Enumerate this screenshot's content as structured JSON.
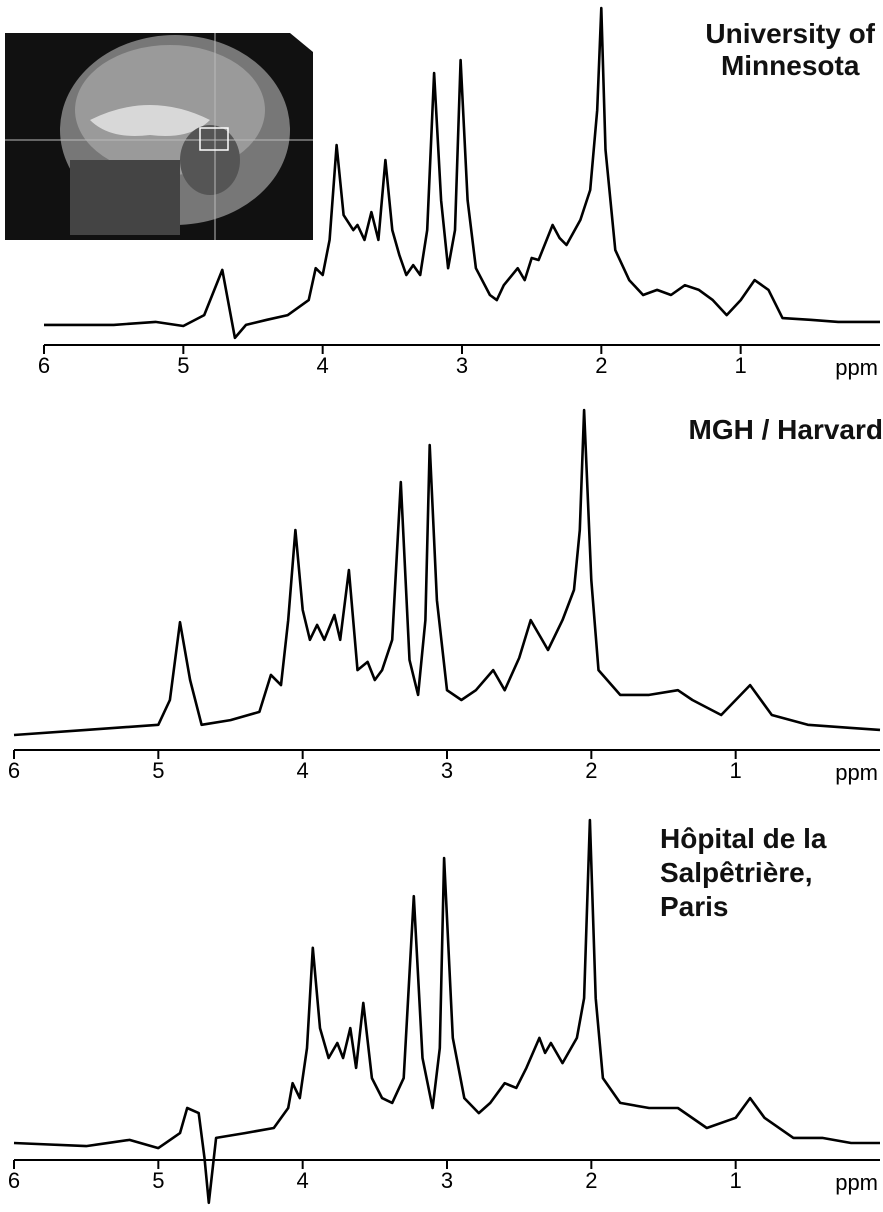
{
  "chart_data": [
    {
      "type": "line",
      "title": "University of\nMinnesota",
      "xlabel": "ppm",
      "color": "#000000",
      "xlim": [
        6,
        0
      ],
      "ylim": [
        0,
        100
      ],
      "xticks": [
        6,
        5,
        4,
        3,
        2,
        1
      ],
      "x": [
        6.0,
        5.5,
        5.2,
        5.0,
        4.85,
        4.75,
        4.72,
        4.68,
        4.63,
        4.55,
        4.4,
        4.25,
        4.1,
        4.05,
        4.0,
        3.95,
        3.9,
        3.85,
        3.78,
        3.75,
        3.7,
        3.65,
        3.6,
        3.55,
        3.5,
        3.45,
        3.4,
        3.35,
        3.3,
        3.25,
        3.2,
        3.15,
        3.1,
        3.05,
        3.01,
        2.96,
        2.9,
        2.8,
        2.75,
        2.7,
        2.6,
        2.55,
        2.5,
        2.45,
        2.35,
        2.3,
        2.25,
        2.15,
        2.08,
        2.03,
        2.0,
        1.97,
        1.9,
        1.8,
        1.7,
        1.6,
        1.5,
        1.4,
        1.3,
        1.2,
        1.1,
        1.0,
        0.9,
        0.8,
        0.7,
        0.5,
        0.3,
        0.0
      ],
      "values": [
        5.9,
        5.9,
        6.8,
        5.6,
        8.8,
        19.1,
        22.1,
        13.2,
        2.1,
        5.9,
        7.4,
        8.8,
        13.2,
        22.6,
        20.6,
        30.9,
        58.8,
        38.2,
        33.8,
        35.3,
        30.9,
        39.1,
        30.9,
        54.4,
        33.8,
        26.5,
        20.6,
        23.5,
        20.6,
        33.8,
        80,
        42.6,
        22.6,
        33.8,
        83.8,
        42.6,
        22.6,
        14.7,
        13.2,
        17.6,
        22.6,
        19.1,
        25.6,
        25,
        35.3,
        31.5,
        29.4,
        36.8,
        45.6,
        69.1,
        99.1,
        57.4,
        27.9,
        19.1,
        14.7,
        16.2,
        14.7,
        17.6,
        16.2,
        13.2,
        8.8,
        13.2,
        19.1,
        16.2,
        7.9,
        7.4,
        6.8,
        6.8
      ]
    },
    {
      "type": "line",
      "title": "MGH / Harvard",
      "xlabel": "ppm",
      "color": "#000000",
      "xlim": [
        6,
        0
      ],
      "ylim": [
        0,
        100
      ],
      "xticks": [
        6,
        5,
        4,
        3,
        2,
        1
      ],
      "x": [
        6.0,
        5.5,
        5.0,
        4.92,
        4.85,
        4.78,
        4.7,
        4.5,
        4.3,
        4.22,
        4.15,
        4.1,
        4.05,
        4.0,
        3.95,
        3.9,
        3.85,
        3.78,
        3.74,
        3.68,
        3.62,
        3.55,
        3.5,
        3.45,
        3.38,
        3.32,
        3.26,
        3.2,
        3.15,
        3.12,
        3.07,
        3.0,
        2.9,
        2.8,
        2.68,
        2.6,
        2.5,
        2.42,
        2.36,
        2.3,
        2.2,
        2.12,
        2.08,
        2.05,
        2.0,
        1.95,
        1.8,
        1.6,
        1.4,
        1.3,
        1.1,
        0.9,
        0.75,
        0.5,
        0.2,
        0.0
      ],
      "values": [
        4.4,
        5.9,
        7.4,
        14.7,
        37.6,
        20.6,
        7.4,
        8.8,
        11.2,
        22.1,
        19.1,
        38.2,
        64.7,
        41.2,
        32.4,
        36.8,
        32.4,
        39.7,
        32.4,
        52.9,
        23.5,
        25.9,
        20.6,
        23.5,
        32.4,
        78.8,
        26.5,
        16.2,
        38.2,
        89.7,
        44.1,
        17.6,
        14.7,
        17.6,
        23.5,
        17.6,
        27.1,
        38.2,
        33.8,
        29.4,
        38.2,
        47.1,
        64.7,
        100,
        50,
        23.5,
        16.2,
        16.2,
        17.6,
        14.7,
        10.3,
        19.1,
        10.3,
        7.4,
        6.5,
        5.9
      ]
    },
    {
      "type": "line",
      "title": "Hôpital de la\nSalpêtrière,\nParis",
      "xlabel": "ppm",
      "color": "#000000",
      "xlim": [
        6,
        0
      ],
      "ylim": [
        -15,
        100
      ],
      "xticks": [
        6,
        5,
        4,
        3,
        2,
        1
      ],
      "x": [
        6.0,
        5.5,
        5.2,
        5.0,
        4.85,
        4.8,
        4.72,
        4.68,
        4.65,
        4.6,
        4.4,
        4.2,
        4.1,
        4.07,
        4.02,
        3.97,
        3.93,
        3.88,
        3.82,
        3.76,
        3.72,
        3.67,
        3.63,
        3.58,
        3.52,
        3.45,
        3.38,
        3.3,
        3.23,
        3.17,
        3.1,
        3.05,
        3.02,
        2.96,
        2.88,
        2.78,
        2.7,
        2.6,
        2.52,
        2.45,
        2.36,
        2.32,
        2.28,
        2.2,
        2.1,
        2.05,
        2.01,
        1.97,
        1.92,
        1.8,
        1.6,
        1.4,
        1.2,
        1.0,
        0.9,
        0.8,
        0.6,
        0.4,
        0.2,
        0.0
      ],
      "values": [
        5,
        4.1,
        5.9,
        3.5,
        7.9,
        15.3,
        13.8,
        0.6,
        -12.6,
        6.5,
        7.9,
        9.4,
        15.3,
        22.6,
        18.2,
        32.9,
        62.4,
        38.8,
        30,
        34.4,
        30,
        38.8,
        27.1,
        46.2,
        24.1,
        18.2,
        16.8,
        24.1,
        77.6,
        30,
        15.3,
        32.9,
        88.8,
        35.9,
        18.2,
        13.8,
        16.8,
        22.6,
        21.2,
        27.1,
        35.9,
        31.5,
        34.4,
        28.5,
        35.9,
        47.6,
        100,
        47.6,
        24.1,
        16.8,
        15.3,
        15.3,
        9.4,
        12.4,
        18.2,
        12.4,
        6.5,
        6.5,
        5,
        5
      ]
    }
  ]
}
